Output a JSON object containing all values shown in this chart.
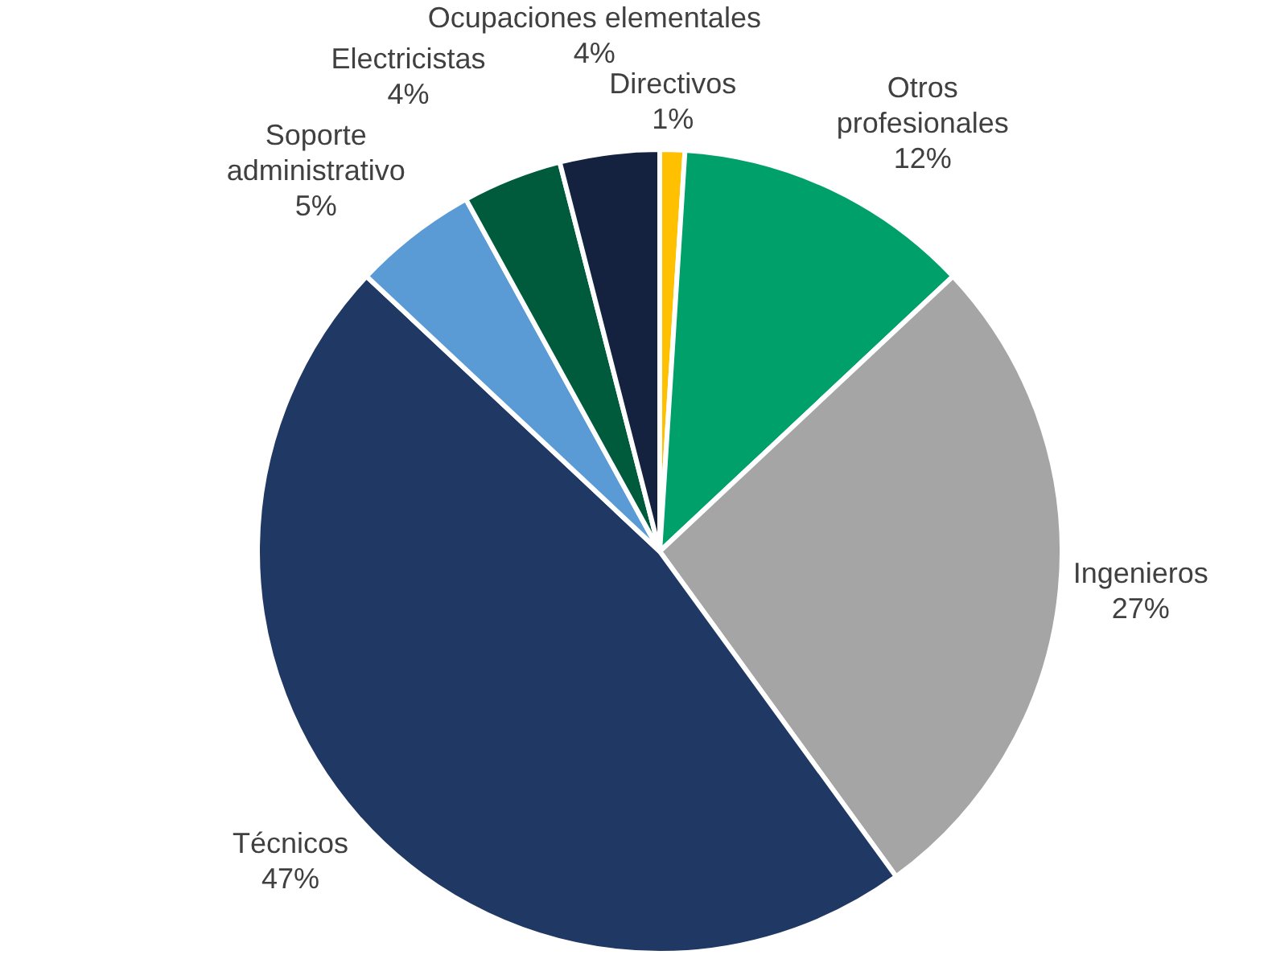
{
  "chart_data": {
    "type": "pie",
    "categories": [
      "Directivos",
      "Otros profesionales",
      "Ingenieros",
      "Técnicos",
      "Soporte administrativo",
      "Electricistas",
      "Ocupaciones elementales"
    ],
    "values": [
      1,
      12,
      27,
      47,
      5,
      4,
      4
    ],
    "colors": [
      "#ffc000",
      "#00a06a",
      "#a5a5a5",
      "#203864",
      "#5b9bd5",
      "#005a3c",
      "#142240"
    ],
    "value_labels": [
      "1%",
      "12%",
      "27%",
      "47%",
      "5%",
      "4%",
      "4%"
    ],
    "legend": false
  }
}
